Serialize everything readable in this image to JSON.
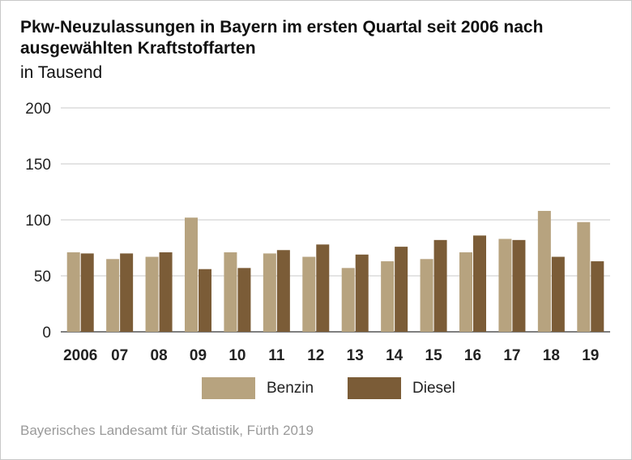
{
  "title": "Pkw-Neuzulassungen in Bayern im ersten Quartal seit 2006 nach ausgewählten Kraftstoffarten",
  "subtitle": "in Tausend",
  "source": "Bayerisches Landesamt für Statistik, Fürth 2019",
  "colors": {
    "benzin": "#b7a37f",
    "diesel": "#7b5c37",
    "grid": "#c8c8c8",
    "axis": "#555555"
  },
  "legend": [
    {
      "label": "Benzin",
      "color": "#b7a37f"
    },
    {
      "label": "Diesel",
      "color": "#7b5c37"
    }
  ],
  "chart_data": {
    "type": "bar",
    "title": "Pkw-Neuzulassungen in Bayern im ersten Quartal seit 2006 nach ausgewählten Kraftstoffarten",
    "subtitle": "in Tausend",
    "categories": [
      "2006",
      "07",
      "08",
      "09",
      "10",
      "11",
      "12",
      "13",
      "14",
      "15",
      "16",
      "17",
      "18",
      "19"
    ],
    "series": [
      {
        "name": "Benzin",
        "values": [
          71,
          65,
          67,
          102,
          71,
          70,
          67,
          57,
          63,
          65,
          71,
          83,
          108,
          98
        ]
      },
      {
        "name": "Diesel",
        "values": [
          70,
          70,
          71,
          56,
          57,
          73,
          78,
          69,
          76,
          82,
          86,
          82,
          67,
          63
        ]
      }
    ],
    "yticks": [
      0,
      50,
      100,
      150,
      200
    ],
    "ylim": [
      0,
      200
    ],
    "grid": true,
    "legend_position": "bottom"
  }
}
